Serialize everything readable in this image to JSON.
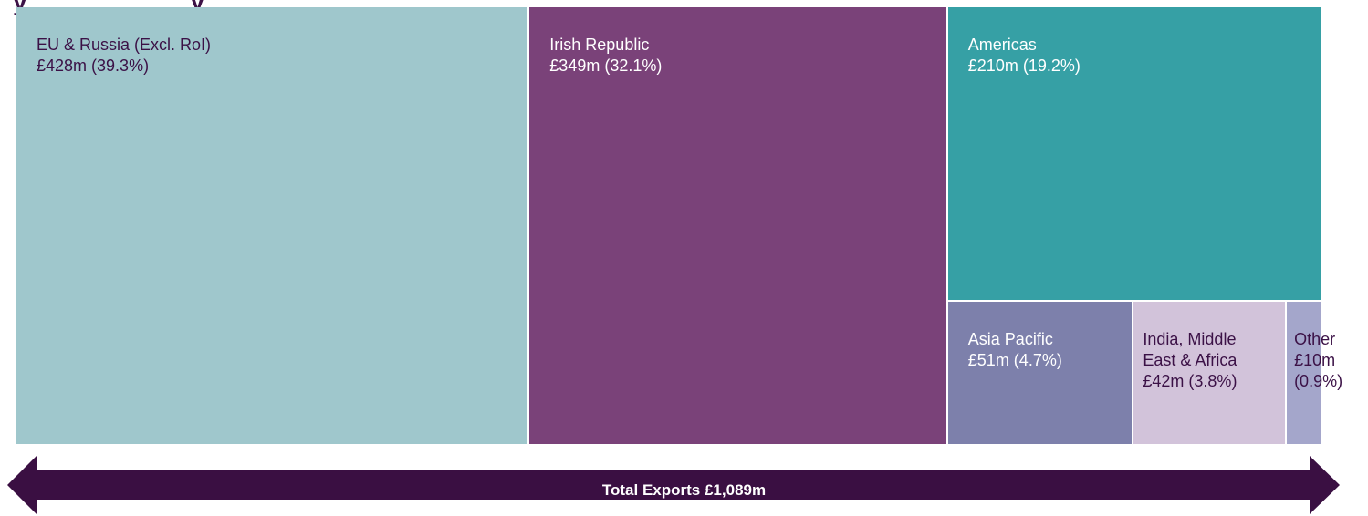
{
  "chart_data": {
    "type": "treemap",
    "title": "",
    "unit": "£m",
    "items": [
      {
        "name": "EU & Russia (Excl. RoI)",
        "value": 428,
        "percent": 39.3,
        "label": "£428m (39.3%)",
        "color": "#9fc7cc",
        "text_color": "#3b1146"
      },
      {
        "name": "Irish Republic",
        "value": 349,
        "percent": 32.1,
        "label": "£349m (32.1%)",
        "color": "#7a4279",
        "text_color": "#ffffff"
      },
      {
        "name": "Americas",
        "value": 210,
        "percent": 19.2,
        "label": "£210m (19.2%)",
        "color": "#36a0a5",
        "text_color": "#ffffff"
      },
      {
        "name": "Asia Pacific",
        "value": 51,
        "percent": 4.7,
        "label": "£51m (4.7%)",
        "color": "#7d80ab",
        "text_color": "#ffffff"
      },
      {
        "name": "India, Middle\nEast & Africa",
        "value": 42,
        "percent": 3.8,
        "label": "£42m (3.8%)",
        "color": "#d2c3da",
        "text_color": "#3b1146"
      },
      {
        "name": "Other",
        "value": 10,
        "percent": 0.9,
        "label": "£10m\n(0.9%)",
        "color": "#a4a6cb",
        "text_color": "#3b1146"
      }
    ],
    "total_label": "Total Exports £1,089m",
    "arrow_color": "#3a0f42"
  }
}
